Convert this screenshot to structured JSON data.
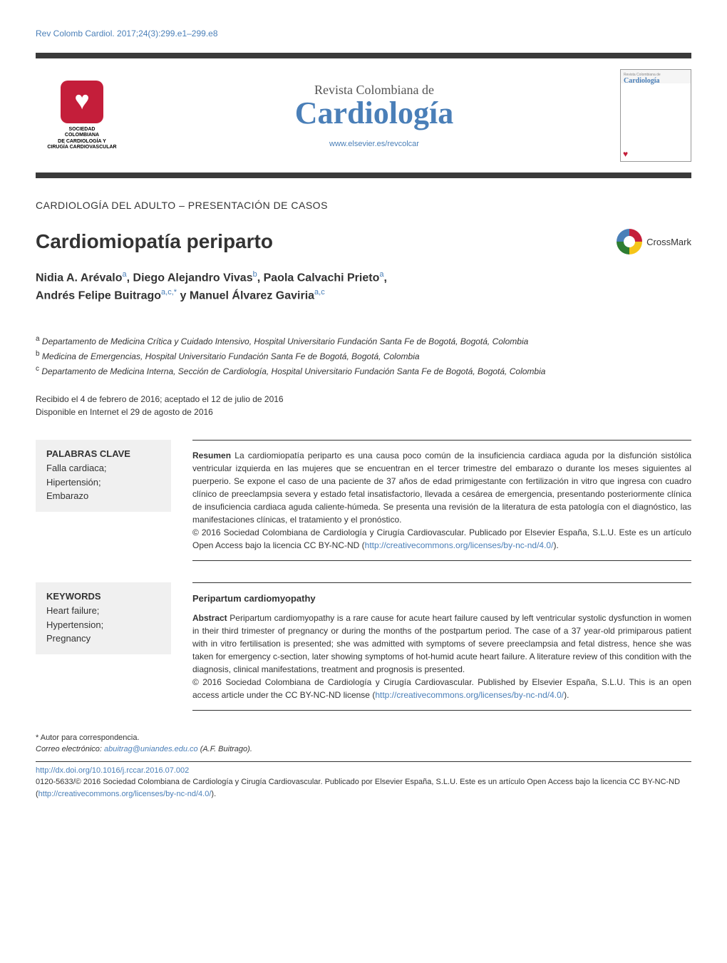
{
  "citation": "Rev Colomb Cardiol. 2017;24(3):299.e1–299.e8",
  "logo_left": {
    "line1": "SOCIEDAD",
    "line2": "COLOMBIANA",
    "line3": "DE CARDIOLOGÍA Y",
    "line4": "CIRUGÍA CARDIOVASCULAR"
  },
  "journal": {
    "subtitle": "Revista Colombiana de",
    "title": "Cardiología",
    "url": "www.elsevier.es/revcolcar"
  },
  "cover_thumb": {
    "small": "Revista Colombiana de",
    "title": "Cardiología"
  },
  "section_label": "CARDIOLOGÍA DEL ADULTO – PRESENTACIÓN DE CASOS",
  "article_title": "Cardiomiopatía periparto",
  "crossmark_label": "CrossMark",
  "authors_html": "Nidia A. Arévalo|a|, Diego Alejandro Vivas|b|, Paola Calvachi Prieto|a|, Andrés Felipe Buitrago|a,c,*| y Manuel Álvarez Gaviria|a,c|",
  "authors": {
    "a1_name": "Nidia A. Arévalo",
    "a1_sup": "a",
    "sep1": ", ",
    "a2_name": "Diego Alejandro Vivas",
    "a2_sup": "b",
    "sep2": ", ",
    "a3_name": "Paola Calvachi Prieto",
    "a3_sup": "a",
    "sep3": ", ",
    "a4_name": "Andrés Felipe Buitrago",
    "a4_sup": "a,c,*",
    "sep4": " y ",
    "a5_name": "Manuel Álvarez Gaviria",
    "a5_sup": "a,c"
  },
  "affiliations": {
    "a": "Departamento de Medicina Crítica y Cuidado Intensivo, Hospital Universitario Fundación Santa Fe de Bogotá, Bogotá, Colombia",
    "b": "Medicina de Emergencias, Hospital Universitario Fundación Santa Fe de Bogotá, Bogotá, Colombia",
    "c": "Departamento de Medicina Interna, Sección de Cardiología, Hospital Universitario Fundación Santa Fe de Bogotá, Bogotá, Colombia"
  },
  "dates": {
    "received": "Recibido el 4 de febrero de 2016; aceptado el 12 de julio de 2016",
    "online": "Disponible en Internet el 29 de agosto de 2016"
  },
  "spanish_block": {
    "kw_heading": "PALABRAS CLAVE",
    "kw1": "Falla cardiaca;",
    "kw2": "Hipertensión;",
    "kw3": "Embarazo",
    "resumen_label": "Resumen",
    "resumen_text": "   La cardiomiopatía periparto es una causa poco común de la insuficiencia cardiaca aguda por la disfunción sistólica ventricular izquierda en las mujeres que se encuentran en el tercer trimestre del embarazo o durante los meses siguientes al puerperio. Se expone el caso de una paciente de 37 años de edad primigestante con fertilización in vitro que ingresa con cuadro clínico de preeclampsia severa y estado fetal insatisfactorio, llevada a cesárea de emergencia, presentando posteriormente clínica de insuficiencia cardiaca aguda caliente-húmeda. Se presenta una revisión de la literatura de esta patología con el diagnóstico, las manifestaciones clínicas, el tratamiento y el pronóstico.",
    "copyright": "© 2016 Sociedad Colombiana de Cardiología y Cirugía Cardiovascular. Publicado por Elsevier España, S.L.U. Este es un artículo Open Access bajo la licencia CC BY-NC-ND (",
    "cc_link": "http://creativecommons.org/licenses/by-nc-nd/4.0/",
    "copyright_end": ")."
  },
  "english_block": {
    "kw_heading": "KEYWORDS",
    "kw1": "Heart failure;",
    "kw2": "Hypertension;",
    "kw3": "Pregnancy",
    "title": "Peripartum cardiomyopathy",
    "abstract_label": "Abstract",
    "abstract_text": "   Peripartum cardiomyopathy is a rare cause for acute heart failure caused by left ventricular systolic dysfunction in women in their third trimester of pregnancy or during the months of the postpartum period. The case of a 37 year-old primiparous patient with in vitro fertilisation is presented; she was admitted with symptoms of severe preeclampsia and fetal distress, hence she was taken for emergency c-section, later showing symptoms of hot-humid acute heart failure. A literature review of this condition with the diagnosis, clinical manifestations, treatment and prognosis is presented.",
    "copyright": "© 2016 Sociedad Colombiana de Cardiología y Cirugía Cardiovascular. Published by Elsevier España, S.L.U. This is an open access article under the CC BY-NC-ND license (",
    "cc_link": "http://creativecommons.org/licenses/by-nc-nd/4.0/",
    "copyright_end": ")."
  },
  "footer": {
    "corr_marker": "* Autor para correspondencia.",
    "corr_label": "Correo electrónico: ",
    "corr_email": "abuitrag@uniandes.edu.co",
    "corr_name": " (A.F. Buitrago).",
    "doi": "http://dx.doi.org/10.1016/j.rccar.2016.07.002",
    "issn_copyright": "0120-5633/© 2016 Sociedad Colombiana de Cardiología y Cirugía Cardiovascular. Publicado por Elsevier España, S.L.U. Este es un artículo Open Access bajo la licencia CC BY-NC-ND (",
    "cc_link": "http://creativecommons.org/licenses/by-nc-nd/4.0/",
    "copyright_end": ")."
  },
  "colors": {
    "link": "#4a7fb8",
    "accent_red": "#c41e3a",
    "bar": "#3a3a3a",
    "kw_bg": "#f0f0f0"
  }
}
